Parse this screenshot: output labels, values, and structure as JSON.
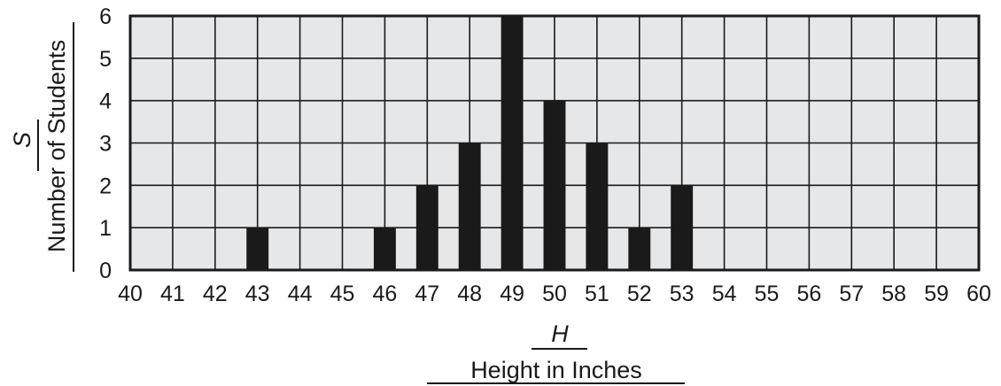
{
  "chart_data": {
    "type": "bar",
    "x": [
      40,
      41,
      42,
      43,
      44,
      45,
      46,
      47,
      48,
      49,
      50,
      51,
      52,
      53,
      54,
      55,
      56,
      57,
      58,
      59,
      60
    ],
    "bars": [
      {
        "x": 43,
        "value": 1
      },
      {
        "x": 46,
        "value": 1
      },
      {
        "x": 47,
        "value": 2
      },
      {
        "x": 48,
        "value": 3
      },
      {
        "x": 49,
        "value": 6
      },
      {
        "x": 50,
        "value": 4
      },
      {
        "x": 51,
        "value": 3
      },
      {
        "x": 52,
        "value": 1
      },
      {
        "x": 53,
        "value": 2
      }
    ],
    "xlim": [
      40,
      60
    ],
    "ylim": [
      0,
      6
    ],
    "yticks": [
      0,
      1,
      2,
      3,
      4,
      5,
      6
    ],
    "xlabel_var": "H",
    "xlabel": "Height in Inches",
    "ylabel_var": "S",
    "ylabel": "Number of Students",
    "grid": true,
    "colors": {
      "plot_background": "#e6e7e8",
      "grid": "#1a1a1a",
      "bar": "#1a1a1a"
    }
  }
}
